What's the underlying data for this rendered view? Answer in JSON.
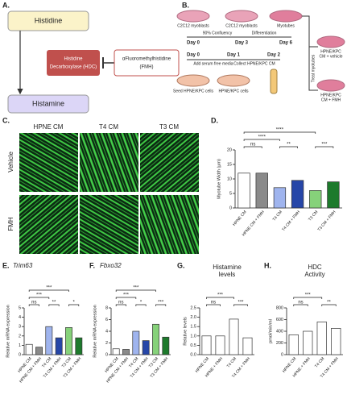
{
  "panel_a": {
    "label": "A.",
    "histidine": "Histidine",
    "histamine": "Histamine",
    "enzyme": [
      "Histidine",
      "Decarboxylase (HDC)"
    ],
    "inhibitor": [
      "αFluoromethylhistidine",
      "(FMH)"
    ]
  },
  "panel_b": {
    "label": "B.",
    "cells": [
      "C2C12 myoblasts",
      "C2C12 myoblasts",
      "Myotubes"
    ],
    "steps": [
      "90% Confluency",
      "Differentiation"
    ],
    "days_top": [
      "Day 0",
      "Day 3",
      "Day 6"
    ],
    "days_bottom": [
      "Day 0",
      "Day 1",
      "Day 2"
    ],
    "actions": [
      "Add serum free media",
      "Collect HPNE/KPC CM"
    ],
    "seed": [
      "Seed HPNE/KPC cells",
      "HPNE/KPC cells"
    ],
    "treat": "Treat myotubes",
    "outcomes": [
      [
        "HPNE/KPC",
        "CM + vehicle"
      ],
      [
        "HPNE/KPC",
        "CM + FMH"
      ]
    ]
  },
  "panel_c": {
    "label": "C.",
    "columns": [
      "HPNE CM",
      "T4 CM",
      "T3 CM"
    ],
    "rows": [
      "Vehicle",
      "FMH"
    ]
  },
  "chart_data": [
    {
      "type": "bar",
      "label": "D.",
      "ylabel": "Myotube Width (μm)",
      "categories": [
        "HPNE CM",
        "HPNE CM + FMH",
        "T4 CM",
        "T4 CM + FMH",
        "T3 CM",
        "T3 CM + FMH"
      ],
      "values": [
        12,
        12,
        7,
        9.5,
        6,
        9
      ],
      "colors": [
        "#ffffff",
        "#8a8a8a",
        "#9fb4ee",
        "#2646a8",
        "#86d27a",
        "#1d7a2c"
      ],
      "ylim": [
        0,
        20
      ],
      "yticks": [
        0,
        5,
        10,
        15,
        20
      ],
      "annotations": [
        "ns",
        "****",
        "****",
        "**",
        "***"
      ]
    },
    {
      "type": "bar",
      "label": "E.",
      "title": "Trim63",
      "ylabel": "Relative mRNA expression",
      "categories": [
        "HPNE CM",
        "HPNE CM + FMH",
        "T4 CM",
        "T4 CM + FMH",
        "T3 CM",
        "T3 CM + FMH"
      ],
      "values": [
        1.1,
        0.8,
        3.0,
        1.8,
        2.9,
        1.8
      ],
      "colors": [
        "#ffffff",
        "#8a8a8a",
        "#9fb4ee",
        "#2646a8",
        "#86d27a",
        "#1d7a2c"
      ],
      "ylim": [
        0,
        5
      ],
      "yticks": [
        0,
        1,
        2,
        3,
        4,
        5
      ],
      "annotations": [
        "***",
        "ns",
        "***",
        "**",
        "*"
      ]
    },
    {
      "type": "bar",
      "label": "F.",
      "title": "Fbxo32",
      "ylabel": "Relative mRNA expression",
      "categories": [
        "HPNE CM",
        "HPNE CM + FMH",
        "T4 CM",
        "T4 CM + FMH",
        "T3 CM",
        "T3 CM + FMH"
      ],
      "values": [
        1.0,
        0.9,
        4.0,
        2.4,
        5.2,
        3.0
      ],
      "colors": [
        "#ffffff",
        "#8a8a8a",
        "#9fb4ee",
        "#2646a8",
        "#86d27a",
        "#1d7a2c"
      ],
      "ylim": [
        0,
        8
      ],
      "yticks": [
        0,
        2,
        4,
        6,
        8
      ],
      "annotations": [
        "***",
        "ns",
        "***",
        "*",
        "***"
      ]
    },
    {
      "type": "bar",
      "label": "G.",
      "title": [
        "Histamine",
        "levels"
      ],
      "ylabel": "Relative levels",
      "categories": [
        "HPNE CM",
        "HPNE + FMH",
        "T4 CM",
        "T4 CM + FMH"
      ],
      "values": [
        1.0,
        1.0,
        1.9,
        0.9
      ],
      "colors": [
        "#ffffff",
        "#ffffff",
        "#ffffff",
        "#ffffff"
      ],
      "ylim": [
        0,
        2.5
      ],
      "yticks": [
        {
          "value": 0,
          "label": "0.0"
        },
        {
          "value": 0.5,
          "label": "0.5"
        },
        {
          "value": 1,
          "label": "1.0"
        },
        {
          "value": 1.5,
          "label": "1.5"
        },
        {
          "value": 2,
          "label": "2.0"
        },
        {
          "value": 2.5,
          "label": "2.5"
        }
      ],
      "annotations": [
        "***",
        "ns",
        "***"
      ]
    },
    {
      "type": "bar",
      "label": "H.",
      "title": [
        "HDC",
        "Activity"
      ],
      "ylabel": "pmol/min/ml",
      "categories": [
        "HPNE CM",
        "HPNE + FMH",
        "T4 CM",
        "T4 CM + FMH"
      ],
      "values": [
        340,
        400,
        560,
        450
      ],
      "colors": [
        "#ffffff",
        "#ffffff",
        "#ffffff",
        "#ffffff"
      ],
      "ylim": [
        0,
        800
      ],
      "yticks": [
        0,
        200,
        400,
        600,
        800
      ],
      "annotations": [
        "***",
        "ns",
        "**"
      ]
    }
  ]
}
